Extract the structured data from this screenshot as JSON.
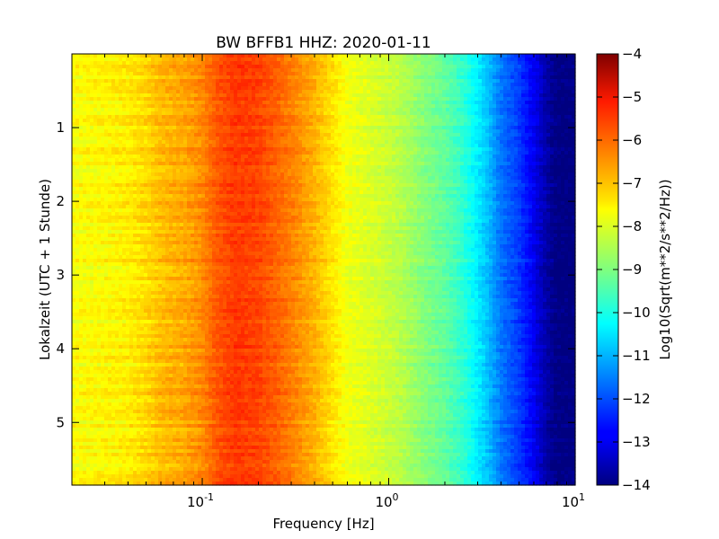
{
  "chart_data": {
    "type": "heatmap",
    "title": "BW BFFB1 HHZ: 2020-01-11",
    "xlabel": "Frequency [Hz]",
    "ylabel": "Lokalzeit (UTC + 1 Stunde)",
    "x_scale": "log",
    "xlim": [
      0.02,
      10
    ],
    "ylim": [
      5.85,
      0
    ],
    "x_ticks": [
      {
        "value": 0.1,
        "base": "10",
        "exp": "-1"
      },
      {
        "value": 1,
        "base": "10",
        "exp": "0"
      },
      {
        "value": 10,
        "base": "10",
        "exp": "1"
      }
    ],
    "y_ticks": [
      {
        "value": 1,
        "label": "1"
      },
      {
        "value": 2,
        "label": "2"
      },
      {
        "value": 3,
        "label": "3"
      },
      {
        "value": 4,
        "label": "4"
      },
      {
        "value": 5,
        "label": "5"
      }
    ],
    "colorbar": {
      "label": "Log10(Sqrt(m**2/s**2/Hz))",
      "range": [
        -14,
        -4
      ],
      "colormap": "jet",
      "ticks": [
        {
          "value": -4,
          "label": "−4"
        },
        {
          "value": -5,
          "label": "−5"
        },
        {
          "value": -6,
          "label": "−6"
        },
        {
          "value": -7,
          "label": "−7"
        },
        {
          "value": -8,
          "label": "−8"
        },
        {
          "value": -9,
          "label": "−9"
        },
        {
          "value": -10,
          "label": "−10"
        },
        {
          "value": -11,
          "label": "−11"
        },
        {
          "value": -12,
          "label": "−12"
        },
        {
          "value": -13,
          "label": "−13"
        },
        {
          "value": -14,
          "label": "−14"
        }
      ]
    },
    "spectrum_profile": {
      "frequencies": [
        0.02,
        0.03,
        0.04,
        0.05,
        0.06,
        0.08,
        0.1,
        0.12,
        0.15,
        0.2,
        0.25,
        0.3,
        0.4,
        0.5,
        0.6,
        0.8,
        1.0,
        1.2,
        1.5,
        2.0,
        2.5,
        3.0,
        3.5,
        4.0,
        5.0,
        6.0,
        7.0,
        8.0,
        10.0
      ],
      "values": [
        -7.8,
        -7.7,
        -7.6,
        -7.4,
        -7.1,
        -6.9,
        -6.6,
        -6.1,
        -5.8,
        -5.9,
        -6.2,
        -6.5,
        -7.0,
        -7.5,
        -7.9,
        -8.1,
        -8.3,
        -8.5,
        -8.9,
        -9.3,
        -9.8,
        -10.4,
        -11.0,
        -11.6,
        -12.2,
        -12.9,
        -13.6,
        -14.0,
        -14.0
      ]
    }
  }
}
